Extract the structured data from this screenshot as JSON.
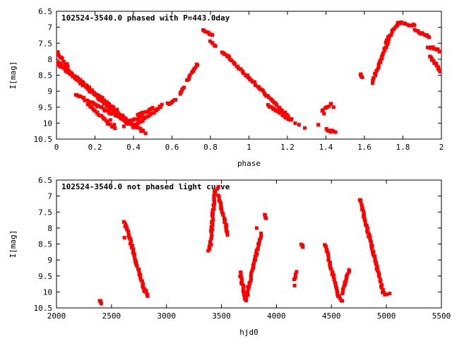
{
  "colors": {
    "points": "#ff0000",
    "axes": "#000000",
    "background": "#ffffff"
  },
  "chart_data": [
    {
      "type": "scatter",
      "title": "102524-3540.0 phased with P=443.0day",
      "xlabel": "phase",
      "ylabel": "I[mag]",
      "xlim": [
        0,
        2
      ],
      "ylim": [
        6.5,
        10.5
      ],
      "y_inverted": true,
      "grid": false,
      "xticks": [
        "0",
        "0.2",
        "0.4",
        "0.6",
        "0.8",
        "1",
        "1.2",
        "1.4",
        "1.6",
        "1.8",
        "2"
      ],
      "yticks": [
        "6.5",
        "7",
        "7.5",
        "8",
        "8.5",
        "9",
        "9.5",
        "10",
        "10.5"
      ],
      "segments": [
        {
          "x": [
            0.0,
            0.37
          ],
          "y": [
            8.1,
            10.0
          ]
        },
        {
          "x": [
            0.02,
            0.36
          ],
          "y": [
            8.15,
            9.85
          ]
        },
        {
          "x": [
            0.0,
            0.03
          ],
          "y": [
            7.8,
            7.95
          ]
        },
        {
          "x": [
            0.04,
            0.06
          ],
          "y": [
            8.1,
            8.2
          ]
        },
        {
          "x": [
            0.16,
            0.3
          ],
          "y": [
            9.4,
            10.15
          ]
        },
        {
          "x": [
            0.1,
            0.32
          ],
          "y": [
            9.1,
            9.8
          ]
        },
        {
          "x": [
            0.33,
            0.46
          ],
          "y": [
            9.8,
            10.3
          ]
        },
        {
          "x": [
            0.4,
            0.55
          ],
          "y": [
            10.1,
            9.45
          ]
        },
        {
          "x": [
            0.42,
            0.5
          ],
          "y": [
            9.75,
            9.55
          ]
        },
        {
          "x": [
            0.36,
            0.45
          ],
          "y": [
            10.0,
            9.8
          ]
        },
        {
          "x": [
            0.58,
            0.62
          ],
          "y": [
            9.4,
            9.25
          ]
        },
        {
          "x": [
            0.64,
            0.66
          ],
          "y": [
            9.1,
            8.9
          ]
        },
        {
          "x": [
            0.68,
            0.73
          ],
          "y": [
            8.65,
            8.15
          ]
        },
        {
          "x": [
            0.76,
            0.81
          ],
          "y": [
            7.1,
            7.25
          ]
        },
        {
          "x": [
            0.8,
            0.83
          ],
          "y": [
            7.45,
            7.6
          ]
        },
        {
          "x": [
            0.86,
            1.22
          ],
          "y": [
            7.75,
            9.9
          ]
        },
        {
          "x": [
            1.1,
            1.22
          ],
          "y": [
            9.45,
            9.9
          ]
        },
        {
          "x": [
            1.38,
            1.43
          ],
          "y": [
            9.6,
            9.4
          ]
        },
        {
          "x": [
            1.4,
            1.45
          ],
          "y": [
            10.2,
            10.3
          ]
        },
        {
          "x": [
            1.58,
            1.59
          ],
          "y": [
            8.5,
            8.55
          ]
        },
        {
          "x": [
            1.64,
            1.73
          ],
          "y": [
            8.75,
            7.3
          ]
        },
        {
          "x": [
            1.71,
            1.78
          ],
          "y": [
            7.45,
            6.85
          ]
        },
        {
          "x": [
            1.78,
            1.86
          ],
          "y": [
            6.85,
            6.95
          ]
        },
        {
          "x": [
            1.86,
            1.94
          ],
          "y": [
            7.1,
            7.3
          ]
        },
        {
          "x": [
            1.93,
            2.0
          ],
          "y": [
            7.6,
            7.75
          ]
        },
        {
          "x": [
            1.94,
            2.0
          ],
          "y": [
            7.9,
            8.4
          ]
        }
      ],
      "points": [
        {
          "x": 0.28,
          "y": 9.9
        },
        {
          "x": 0.3,
          "y": 10.05
        },
        {
          "x": 0.35,
          "y": 10.1
        },
        {
          "x": 1.24,
          "y": 10.0
        },
        {
          "x": 1.26,
          "y": 10.05
        },
        {
          "x": 1.29,
          "y": 10.15
        },
        {
          "x": 1.36,
          "y": 10.05
        },
        {
          "x": 1.39,
          "y": 9.7
        },
        {
          "x": 1.44,
          "y": 9.5
        }
      ]
    },
    {
      "type": "scatter",
      "title": "102524-3540.0 not phased light curve",
      "xlabel": "hjd0",
      "ylabel": "I[mag]",
      "xlim": [
        2000,
        5500
      ],
      "ylim": [
        6.5,
        10.5
      ],
      "y_inverted": true,
      "grid": false,
      "xticks": [
        "2000",
        "2500",
        "3000",
        "3500",
        "4000",
        "4500",
        "5000",
        "5500"
      ],
      "yticks": [
        "6.5",
        "7",
        "7.5",
        "8",
        "8.5",
        "9",
        "9.5",
        "10",
        "10.5"
      ],
      "segments": [
        {
          "x": [
            2395,
            2405
          ],
          "y": [
            10.25,
            10.35
          ]
        },
        {
          "x": [
            2610,
            2640
          ],
          "y": [
            7.8,
            8.0
          ]
        },
        {
          "x": [
            2640,
            2800
          ],
          "y": [
            8.0,
            10.0
          ]
        },
        {
          "x": [
            2800,
            2830
          ],
          "y": [
            9.9,
            10.15
          ]
        },
        {
          "x": [
            3380,
            3400
          ],
          "y": [
            8.7,
            8.5
          ]
        },
        {
          "x": [
            3400,
            3440
          ],
          "y": [
            8.5,
            6.85
          ]
        },
        {
          "x": [
            3440,
            3470
          ],
          "y": [
            6.85,
            6.75
          ]
        },
        {
          "x": [
            3470,
            3560
          ],
          "y": [
            7.0,
            8.2
          ]
        },
        {
          "x": [
            3670,
            3720
          ],
          "y": [
            9.4,
            10.3
          ]
        },
        {
          "x": [
            3720,
            3860
          ],
          "y": [
            10.2,
            8.2
          ]
        },
        {
          "x": [
            3890,
            3900
          ],
          "y": [
            7.6,
            7.7
          ]
        },
        {
          "x": [
            4160,
            4180
          ],
          "y": [
            9.6,
            9.4
          ]
        },
        {
          "x": [
            4230,
            4240
          ],
          "y": [
            8.5,
            8.6
          ]
        },
        {
          "x": [
            4440,
            4560
          ],
          "y": [
            8.5,
            10.1
          ]
        },
        {
          "x": [
            4560,
            4600
          ],
          "y": [
            10.1,
            10.3
          ]
        },
        {
          "x": [
            4600,
            4660
          ],
          "y": [
            10.0,
            9.3
          ]
        },
        {
          "x": [
            4760,
            4780
          ],
          "y": [
            7.1,
            7.3
          ]
        },
        {
          "x": [
            4780,
            4970
          ],
          "y": [
            7.4,
            10.0
          ]
        },
        {
          "x": [
            4970,
            5000
          ],
          "y": [
            10.0,
            10.1
          ]
        }
      ],
      "points": [
        {
          "x": 2618,
          "y": 8.3
        },
        {
          "x": 3700,
          "y": 9.8
        },
        {
          "x": 3740,
          "y": 10.1
        },
        {
          "x": 3820,
          "y": 8.0
        },
        {
          "x": 4165,
          "y": 9.8
        },
        {
          "x": 4600,
          "y": 10.05
        },
        {
          "x": 4620,
          "y": 9.7
        },
        {
          "x": 5030,
          "y": 10.05
        }
      ]
    }
  ]
}
